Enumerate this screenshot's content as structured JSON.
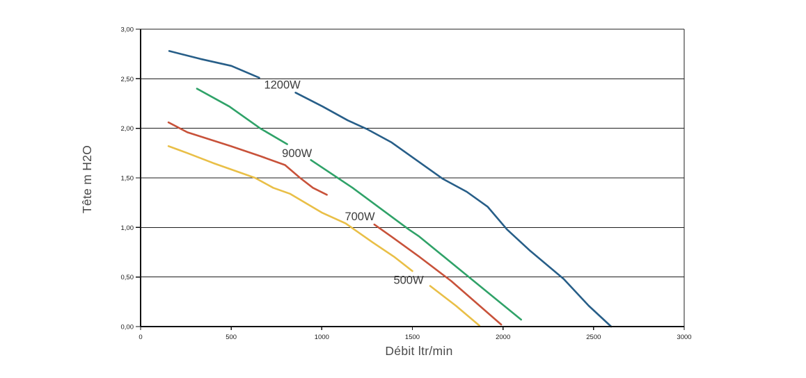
{
  "page": {
    "background": "#ffffff"
  },
  "chart_data": {
    "type": "line",
    "title": "",
    "xlabel": "Débit ltr/min",
    "ylabel": "Tête m H2O",
    "xlim": [
      0,
      3000
    ],
    "ylim": [
      0,
      3.0
    ],
    "grid": "horizontal-gridlines-only, boxed plot area (left axis, bottom axis, right border, top gridline)",
    "legend_position": "inline labels on curves (curve interrupted by its wattage label)",
    "x_ticks": [
      {
        "value": 0,
        "label": "0"
      },
      {
        "value": 500,
        "label": "500"
      },
      {
        "value": 1000,
        "label": "1000"
      },
      {
        "value": 1500,
        "label": "1500"
      },
      {
        "value": 2000,
        "label": "2000"
      },
      {
        "value": 2500,
        "label": "2500"
      },
      {
        "value": 3000,
        "label": "3000"
      }
    ],
    "y_ticks": [
      {
        "value": 3.0,
        "label": "3,00"
      },
      {
        "value": 2.5,
        "label": "2,50"
      },
      {
        "value": 2.0,
        "label": "2,00"
      },
      {
        "value": 1.5,
        "label": "1,50"
      },
      {
        "value": 1.0,
        "label": "1,00"
      },
      {
        "value": 0.5,
        "label": "0,50"
      },
      {
        "value": 0.0,
        "label": "0,00"
      }
    ],
    "colors": {
      "curve_1200w": "#275e88",
      "curve_900w": "#2fa268",
      "curve_700w": "#c8523a",
      "curve_500w": "#e9bf47",
      "gridline": "#1c1c1c",
      "axis": "#111111",
      "tick_label": "#1a1a1a",
      "axis_title": "#4a4a4a",
      "series_label": "#3c3c3c"
    },
    "series": [
      {
        "name": "1200W",
        "color": "#275e88",
        "label_x": 782,
        "label_y": 2.44,
        "segments": [
          [
            [
              158,
              2.78
            ],
            [
              330,
              2.7
            ],
            [
              501,
              2.63
            ],
            [
              655,
              2.51
            ]
          ],
          [
            [
              855,
              2.36
            ],
            [
              1005,
              2.22
            ],
            [
              1144,
              2.08
            ],
            [
              1252,
              1.99
            ],
            [
              1383,
              1.86
            ],
            [
              1668,
              1.49
            ],
            [
              1800,
              1.36
            ],
            [
              1915,
              1.21
            ],
            [
              2022,
              0.98
            ],
            [
              2146,
              0.77
            ],
            [
              2335,
              0.48
            ],
            [
              2473,
              0.21
            ],
            [
              2597,
              0.0
            ]
          ]
        ]
      },
      {
        "name": "900W",
        "color": "#2fa268",
        "label_x": 863,
        "label_y": 1.75,
        "segments": [
          [
            [
              311,
              2.4
            ],
            [
              490,
              2.22
            ],
            [
              660,
              2.0
            ],
            [
              809,
              1.84
            ]
          ],
          [
            [
              940,
              1.68
            ],
            [
              1170,
              1.4
            ],
            [
              1480,
              0.98
            ],
            [
              1537,
              0.91
            ],
            [
              1825,
              0.48
            ],
            [
              2100,
              0.07
            ]
          ]
        ]
      },
      {
        "name": "700W",
        "color": "#c8523a",
        "label_x": 1210,
        "label_y": 1.11,
        "segments": [
          [
            [
              154,
              2.06
            ],
            [
              258,
              1.96
            ],
            [
              497,
              1.82
            ],
            [
              660,
              1.72
            ],
            [
              797,
              1.63
            ],
            [
              880,
              1.5
            ],
            [
              951,
              1.4
            ],
            [
              1028,
              1.33
            ]
          ],
          [
            [
              1290,
              1.03
            ],
            [
              1390,
              0.9
            ],
            [
              1541,
              0.7
            ],
            [
              1714,
              0.46
            ],
            [
              1990,
              0.02
            ]
          ]
        ]
      },
      {
        "name": "500W",
        "color": "#e9bf47",
        "label_x": 1479,
        "label_y": 0.47,
        "segments": [
          [
            [
              154,
              1.82
            ],
            [
              258,
              1.75
            ],
            [
              400,
              1.65
            ],
            [
              632,
              1.5
            ],
            [
              732,
              1.4
            ],
            [
              824,
              1.34
            ],
            [
              1000,
              1.15
            ],
            [
              1132,
              1.04
            ],
            [
              1280,
              0.85
            ],
            [
              1402,
              0.7
            ],
            [
              1500,
              0.56
            ]
          ],
          [
            [
              1598,
              0.41
            ],
            [
              1740,
              0.21
            ],
            [
              1870,
              0.01
            ]
          ]
        ]
      }
    ]
  }
}
